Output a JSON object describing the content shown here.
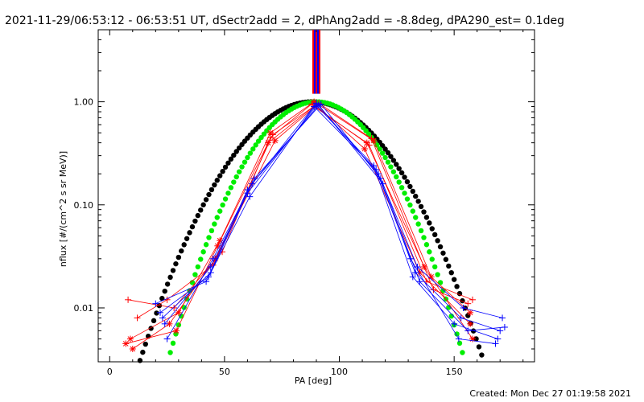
{
  "header": {
    "title": "2021-11-29/06:53:12 - 06:53:51 UT, dSectr2add = 2, dPhAng2add = -8.8deg, dPA290_est=  0.1deg"
  },
  "footer": {
    "created": "Created: Mon Dec 27 01:19:58 2021"
  },
  "colors": {
    "red": "#ff0000",
    "blue": "#0000ff",
    "black": "#000000",
    "green": "#00ee00",
    "background": "#ffffff"
  },
  "chart_data": {
    "type": "scatter",
    "xlabel": "PA [deg]",
    "ylabel": "nflux [#/(cm^2 s sr MeV)]",
    "xlim": [
      -5,
      185
    ],
    "ylim": [
      0.003,
      5.0
    ],
    "yscale": "log",
    "x_ticks": [
      0,
      50,
      100,
      150
    ],
    "x_tick_labels": [
      "0",
      "50",
      "100",
      "150"
    ],
    "y_ticks": [
      0.01,
      0.1,
      1.0
    ],
    "y_tick_labels": [
      "0.01",
      "0.10",
      "1.00"
    ],
    "grid": false,
    "vertical_marker": {
      "x": 90,
      "colors": [
        "red",
        "blue"
      ]
    },
    "series": [
      {
        "color": "red",
        "marker": "star",
        "x": [
          9,
          30,
          48,
          70,
          89,
          115,
          140,
          157
        ],
        "y": [
          0.005,
          0.009,
          0.045,
          0.5,
          1.0,
          0.42,
          0.02,
          0.009
        ]
      },
      {
        "color": "red",
        "marker": "plus",
        "x": [
          8,
          28,
          49,
          70,
          88,
          113,
          138,
          158
        ],
        "y": [
          0.012,
          0.01,
          0.035,
          0.45,
          0.95,
          0.38,
          0.018,
          0.012
        ]
      },
      {
        "color": "red",
        "marker": "star",
        "x": [
          10,
          26,
          46,
          72,
          90,
          111,
          135,
          157
        ],
        "y": [
          0.004,
          0.007,
          0.03,
          0.42,
          0.92,
          0.35,
          0.022,
          0.007
        ]
      },
      {
        "color": "red",
        "marker": "plus",
        "x": [
          12,
          25,
          45,
          71,
          91,
          114,
          141,
          156
        ],
        "y": [
          0.008,
          0.012,
          0.026,
          0.48,
          0.97,
          0.44,
          0.015,
          0.011
        ]
      },
      {
        "color": "red",
        "marker": "star",
        "x": [
          7,
          29,
          47,
          69,
          89,
          112,
          137,
          158
        ],
        "y": [
          0.0045,
          0.006,
          0.04,
          0.4,
          0.9,
          0.4,
          0.025,
          0.005
        ]
      },
      {
        "color": "blue",
        "marker": "plus",
        "x": [
          22,
          43,
          60,
          90,
          117,
          133,
          153,
          170
        ],
        "y": [
          0.009,
          0.02,
          0.14,
          0.97,
          0.2,
          0.022,
          0.008,
          0.006
        ]
      },
      {
        "color": "blue",
        "marker": "plus",
        "x": [
          24,
          44,
          62,
          91,
          119,
          135,
          156,
          172
        ],
        "y": [
          0.007,
          0.025,
          0.16,
          0.93,
          0.16,
          0.018,
          0.006,
          0.0065
        ]
      },
      {
        "color": "blue",
        "marker": "plus",
        "x": [
          20,
          42,
          61,
          89,
          116,
          131,
          152,
          168
        ],
        "y": [
          0.011,
          0.018,
          0.12,
          0.9,
          0.22,
          0.03,
          0.005,
          0.0045
        ]
      },
      {
        "color": "blue",
        "marker": "plus",
        "x": [
          25,
          45,
          63,
          92,
          118,
          134,
          154,
          171
        ],
        "y": [
          0.005,
          0.03,
          0.18,
          0.95,
          0.18,
          0.025,
          0.01,
          0.008
        ]
      },
      {
        "color": "blue",
        "marker": "plus",
        "x": [
          23,
          44,
          60,
          90,
          115,
          132,
          150,
          169
        ],
        "y": [
          0.008,
          0.022,
          0.13,
          0.92,
          0.24,
          0.02,
          0.007,
          0.005
        ]
      }
    ],
    "fit_curves": [
      {
        "color": "black",
        "marker": "dot",
        "center": 88,
        "sigma": 22,
        "y0": 1.0
      },
      {
        "color": "green",
        "marker": "dot",
        "center": 90,
        "sigma": 19,
        "y0": 1.0
      }
    ]
  }
}
